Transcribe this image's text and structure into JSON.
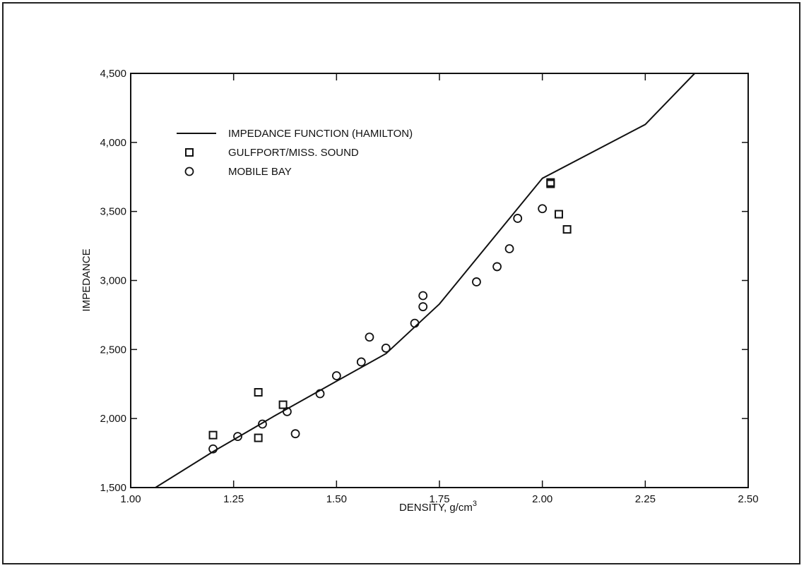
{
  "chart_data": {
    "type": "scatter",
    "xlabel": "DENSITY,  g/cm",
    "xlabel_superscript": "3",
    "ylabel": "IMPEDANCE",
    "xlim": [
      1.0,
      2.5
    ],
    "ylim": [
      1500,
      4500
    ],
    "x_ticks": [
      1.0,
      1.25,
      1.5,
      1.75,
      2.0,
      2.25,
      2.5
    ],
    "x_tick_labels": [
      "1.00",
      "1.25",
      "1.50",
      "1.75",
      "2.00",
      "2.25",
      "2.50"
    ],
    "y_ticks": [
      1500,
      2000,
      2500,
      3000,
      3500,
      4000,
      4500
    ],
    "y_tick_labels": [
      "1,500",
      "2,000",
      "2,500",
      "3,000",
      "3,500",
      "4,000",
      "4,500"
    ],
    "grid": false,
    "legend_position": "top-left",
    "series": [
      {
        "name": "IMPEDANCE FUNCTION (HAMILTON)",
        "kind": "line",
        "color": "#111111",
        "points": [
          [
            1.06,
            1500
          ],
          [
            1.2,
            1760
          ],
          [
            1.35,
            2020
          ],
          [
            1.5,
            2270
          ],
          [
            1.62,
            2470
          ],
          [
            1.75,
            2830
          ],
          [
            2.0,
            3740
          ],
          [
            2.25,
            4130
          ],
          [
            2.37,
            4500
          ]
        ]
      },
      {
        "name": "GULFPORT/MISS. SOUND",
        "kind": "marker",
        "marker": "square",
        "color": "#111111",
        "points": [
          [
            1.2,
            1880
          ],
          [
            1.31,
            2190
          ],
          [
            1.31,
            1860
          ],
          [
            1.37,
            2100
          ],
          [
            2.02,
            3700
          ],
          [
            2.02,
            3710
          ],
          [
            2.04,
            3480
          ],
          [
            2.06,
            3370
          ]
        ]
      },
      {
        "name": "MOBILE BAY",
        "kind": "marker",
        "marker": "circle",
        "color": "#111111",
        "points": [
          [
            1.2,
            1780
          ],
          [
            1.26,
            1870
          ],
          [
            1.32,
            1960
          ],
          [
            1.38,
            2050
          ],
          [
            1.4,
            1890
          ],
          [
            1.46,
            2180
          ],
          [
            1.5,
            2310
          ],
          [
            1.56,
            2410
          ],
          [
            1.58,
            2590
          ],
          [
            1.62,
            2510
          ],
          [
            1.69,
            2690
          ],
          [
            1.71,
            2810
          ],
          [
            1.71,
            2890
          ],
          [
            1.84,
            2990
          ],
          [
            1.89,
            3100
          ],
          [
            1.92,
            3230
          ],
          [
            1.94,
            3450
          ],
          [
            2.0,
            3520
          ]
        ]
      }
    ]
  }
}
